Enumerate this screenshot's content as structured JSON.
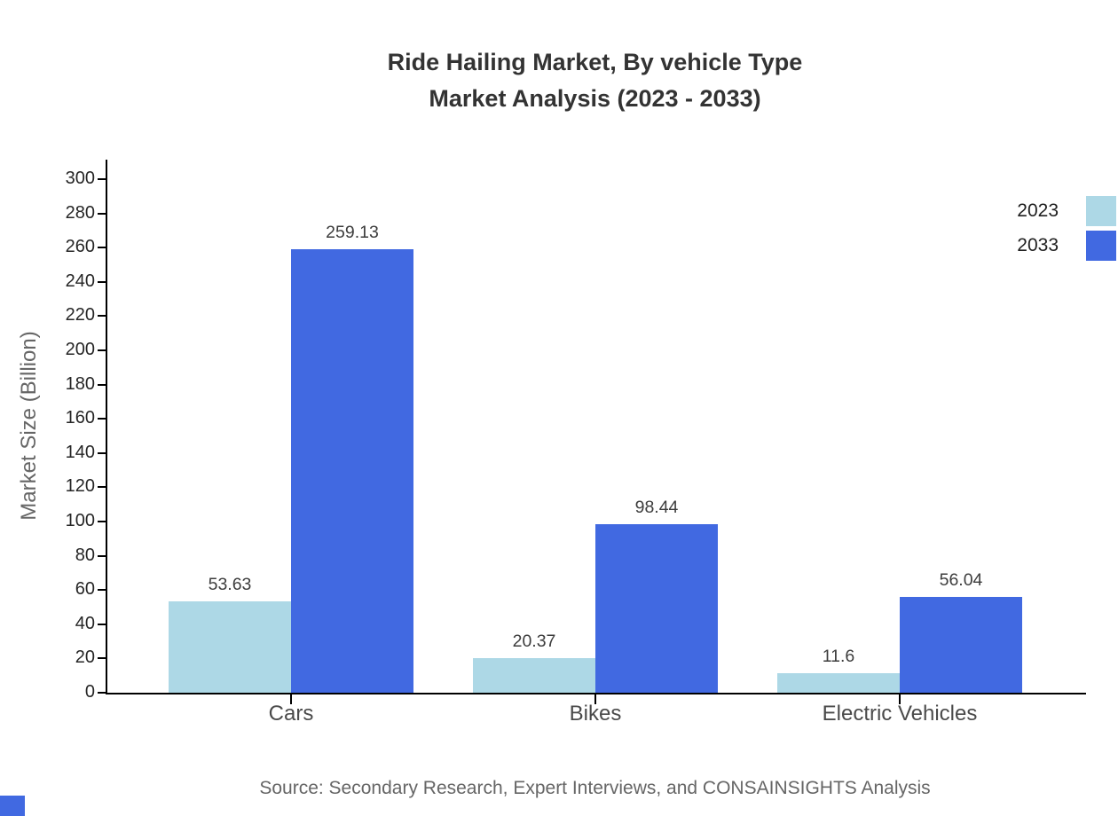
{
  "title": {
    "line1": "Ride Hailing Market, By vehicle Type",
    "line2": "Market Analysis (2023 - 2033)"
  },
  "chart_data": {
    "type": "bar",
    "title": "Ride Hailing Market, By vehicle Type Market Analysis (2023 - 2033)",
    "categories": [
      "Cars",
      "Bikes",
      "Electric Vehicles"
    ],
    "series": [
      {
        "name": "2023",
        "color": "#ADD8E6",
        "values": [
          53.63,
          20.37,
          11.6
        ],
        "labels": [
          "53.63",
          "20.37",
          "11.6"
        ]
      },
      {
        "name": "2033",
        "color": "#4169E1",
        "values": [
          259.13,
          98.44,
          56.04
        ],
        "labels": [
          "259.13",
          "98.44",
          "56.04"
        ]
      }
    ],
    "xlabel": "",
    "ylabel": "Market Size (Billion)",
    "ylim": [
      0,
      300
    ],
    "ytick_step": 20,
    "grid": false,
    "legend_position": "top-right"
  },
  "legend": {
    "items": [
      {
        "label": "2023",
        "color": "#ADD8E6"
      },
      {
        "label": "2033",
        "color": "#4169E1"
      }
    ]
  },
  "source": "Source: Secondary Research, Expert Interviews, and CONSAINSIGHTS Analysis",
  "colors": {
    "series_2023": "#ADD8E6",
    "series_2033": "#4169E1",
    "title_text": "#333333",
    "axis": "#000000",
    "muted_text": "#666666"
  }
}
